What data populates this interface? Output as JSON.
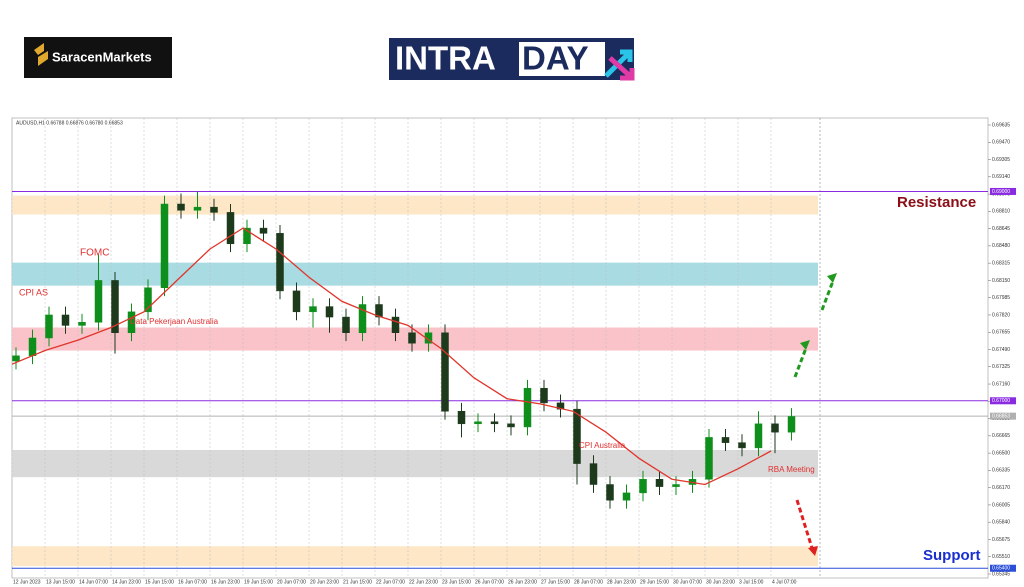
{
  "logos": {
    "brand": "SaracenMarkets",
    "intra": "INTRA",
    "day": "DAY"
  },
  "chart_data": {
    "type": "candlestick",
    "header": "AUDUSD,H1 0.66788 0.66876 0.66780 0.66853",
    "categories": [
      "12 Jun 2023",
      "13 Jun 15:00",
      "14 Jun 07:00",
      "14 Jun 23:00",
      "15 Jun 15:00",
      "16 Jun 07:00",
      "16 Jun 23:00",
      "19 Jun 15:00",
      "20 Jun 07:00",
      "20 Jun 23:00",
      "21 Jun 15:00",
      "22 Jun 07:00",
      "22 Jun 23:00",
      "23 Jun 15:00",
      "26 Jun 07:00",
      "26 Jun 23:00",
      "27 Jun 15:00",
      "28 Jun 07:00",
      "28 Jun 23:00",
      "29 Jun 15:00",
      "30 Jun 07:00",
      "30 Jun 23:00",
      "3 Jul 15:00",
      "4 Jul 07:00"
    ],
    "open": [
      0.6738,
      0.6743,
      0.676,
      0.6782,
      0.6772,
      0.6775,
      0.6815,
      0.6765,
      0.6785,
      0.6808,
      0.6888,
      0.6882,
      0.6885,
      0.688,
      0.685,
      0.6865,
      0.686,
      0.6805,
      0.6785,
      0.679,
      0.678,
      0.6765,
      0.6792,
      0.678,
      0.6765,
      0.6755,
      0.6765,
      0.669,
      0.6678,
      0.668,
      0.6678,
      0.6675,
      0.6712,
      0.6698,
      0.6692,
      0.664,
      0.662,
      0.6605,
      0.6612,
      0.6625,
      0.6618,
      0.662,
      0.6625,
      0.6665,
      0.666,
      0.6655,
      0.6678,
      0.667
    ],
    "high": [
      0.6751,
      0.6768,
      0.679,
      0.679,
      0.6783,
      0.684,
      0.6823,
      0.6793,
      0.6816,
      0.6896,
      0.6898,
      0.69,
      0.6893,
      0.6888,
      0.6873,
      0.6873,
      0.6868,
      0.6813,
      0.6798,
      0.6798,
      0.6788,
      0.68,
      0.68,
      0.6788,
      0.6773,
      0.6773,
      0.6773,
      0.6698,
      0.6688,
      0.6688,
      0.6686,
      0.672,
      0.672,
      0.6706,
      0.67,
      0.6648,
      0.6628,
      0.662,
      0.6633,
      0.6633,
      0.6628,
      0.6633,
      0.6673,
      0.6673,
      0.6668,
      0.669,
      0.6686,
      0.6693
    ],
    "low": [
      0.673,
      0.6735,
      0.6752,
      0.6764,
      0.6764,
      0.6767,
      0.6745,
      0.6757,
      0.6777,
      0.68,
      0.6874,
      0.6874,
      0.6872,
      0.6842,
      0.6842,
      0.6852,
      0.6797,
      0.6777,
      0.677,
      0.6765,
      0.6757,
      0.6757,
      0.6772,
      0.6757,
      0.6747,
      0.6747,
      0.6682,
      0.6665,
      0.667,
      0.667,
      0.6667,
      0.6667,
      0.669,
      0.6684,
      0.662,
      0.6612,
      0.6597,
      0.6597,
      0.6604,
      0.661,
      0.661,
      0.6612,
      0.6617,
      0.6652,
      0.6647,
      0.6647,
      0.665,
      0.6662
    ],
    "close": [
      0.6743,
      0.676,
      0.6782,
      0.6772,
      0.6775,
      0.6815,
      0.6765,
      0.6785,
      0.6808,
      0.6888,
      0.6882,
      0.6885,
      0.688,
      0.685,
      0.6865,
      0.686,
      0.6805,
      0.6785,
      0.679,
      0.678,
      0.6765,
      0.6792,
      0.678,
      0.6765,
      0.6755,
      0.6765,
      0.669,
      0.6678,
      0.668,
      0.6678,
      0.6675,
      0.6712,
      0.6698,
      0.6692,
      0.664,
      0.662,
      0.6605,
      0.6612,
      0.6625,
      0.6618,
      0.662,
      0.6625,
      0.6665,
      0.666,
      0.6655,
      0.6678,
      0.667,
      0.6685
    ],
    "up_color": "#0e8f1c",
    "down_color": "#1d3a1d",
    "ma": {
      "color": "#e0352b",
      "values": [
        0.6735,
        0.6748,
        0.6758,
        0.677,
        0.6785,
        0.6815,
        0.6845,
        0.6865,
        0.6845,
        0.6818,
        0.6795,
        0.6782,
        0.6772,
        0.675,
        0.6722,
        0.6702,
        0.6697,
        0.669,
        0.667,
        0.6645,
        0.6625,
        0.662,
        0.6635,
        0.6652
      ]
    },
    "ylim": [
      0.65345,
      0.69635
    ],
    "yticks": [
      0.65345,
      {
        "value": 0.6551,
        "label": "0.65510"
      },
      0.65675,
      {
        "value": 0.6584,
        "label": "0.65840"
      },
      0.66005,
      {
        "value": 0.6617,
        "label": "0.66170"
      },
      0.66335,
      {
        "value": 0.665,
        "label": "0.66500"
      },
      0.66665,
      {
        "value": 0.6683,
        "label": "0.66830"
      },
      0.66995,
      {
        "value": 0.6716,
        "label": "0.67160"
      },
      0.67325,
      {
        "value": 0.6749,
        "label": "0.67490"
      },
      0.67655,
      {
        "value": 0.6782,
        "label": "0.67820"
      },
      0.67985,
      {
        "value": 0.6815,
        "label": "0.68150"
      },
      0.68315,
      {
        "value": 0.6848,
        "label": "0.68480"
      },
      0.68645,
      {
        "value": 0.6881,
        "label": "0.68810"
      },
      0.68975,
      {
        "value": 0.6914,
        "label": "0.69140"
      },
      0.69305,
      {
        "value": 0.6947,
        "label": "0.69470"
      },
      0.69635
    ],
    "levels": [
      {
        "value": 0.69,
        "label": "0.69000"
      },
      {
        "value": 0.67,
        "label": "0.67000"
      },
      0.66853,
      {
        "value": 0.654,
        "label": "0.65400"
      }
    ],
    "level_colors": [
      "#8a2be2",
      "#8a2be2",
      "#b0b0b0",
      "#2b4fd8"
    ],
    "zones": [
      [
        0.6878,
        0.6896
      ],
      [
        0.681,
        0.6832
      ],
      [
        0.6748,
        0.677
      ],
      [
        0.6627,
        0.6653
      ],
      [
        0.6542,
        0.6561
      ]
    ],
    "zone_colors": [
      "#fde7c6",
      "#a9dbe2",
      "#f9c3c9",
      "#d9d9d9",
      "#fde7c6"
    ],
    "annotations": [
      "CPI AS",
      "FOMC",
      "Data Pekerjaan Australia",
      "CPI Australia",
      "RBA Meeting"
    ],
    "resistance": "Resistance",
    "support": "Support"
  }
}
